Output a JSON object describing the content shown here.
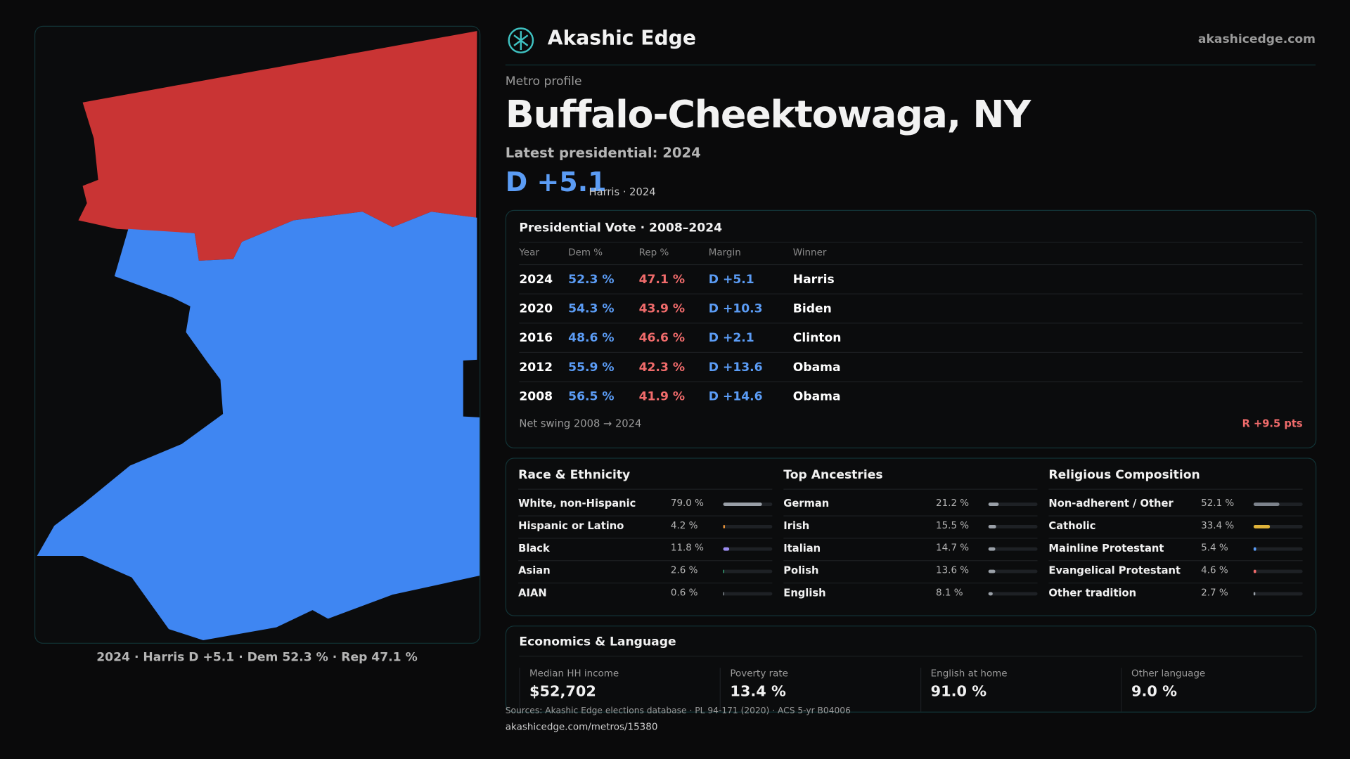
{
  "header": {
    "brand": "Akashic Edge",
    "site": "akashicedge.com"
  },
  "map": {
    "caption": "2024 · Harris D +5.1 · Dem 52.3 % · Rep 47.1 %"
  },
  "profile": {
    "kicker": "Metro profile",
    "title": "Buffalo-Cheektowaga, NY",
    "latest": "Latest presidential: 2024",
    "margin": "D +5.1",
    "margin_note": "Harris · 2024"
  },
  "vote_table": {
    "title": "Presidential Vote · 2008–2024",
    "columns": [
      "Year",
      "Dem %",
      "Rep %",
      "Margin",
      "Winner"
    ],
    "rows": [
      [
        "2024",
        "52.3 %",
        "47.1 %",
        "D +5.1",
        "Harris"
      ],
      [
        "2020",
        "54.3 %",
        "43.9 %",
        "D +10.3",
        "Biden"
      ],
      [
        "2016",
        "48.6 %",
        "46.6 %",
        "D +2.1",
        "Clinton"
      ],
      [
        "2012",
        "55.9 %",
        "42.3 %",
        "D +13.6",
        "Obama"
      ],
      [
        "2008",
        "56.5 %",
        "41.9 %",
        "D +14.6",
        "Obama"
      ]
    ],
    "swing_label": "Net swing 2008 → 2024",
    "swing": "R +9.5 pts"
  },
  "panels": [
    {
      "title": "Race & Ethnicity",
      "items": [
        {
          "label": "White, non-Hispanic",
          "value": 79.0,
          "value_label": "79.0 %",
          "color": "#9aa0a8"
        },
        {
          "label": "Hispanic or Latino",
          "value": 4.2,
          "value_label": "4.2 %",
          "color": "#e8943a"
        },
        {
          "label": "Black",
          "value": 11.8,
          "value_label": "11.8 %",
          "color": "#9b8cf0"
        },
        {
          "label": "Asian",
          "value": 2.6,
          "value_label": "2.6 %",
          "color": "#3dbf8a"
        },
        {
          "label": "AIAN",
          "value": 0.6,
          "value_label": "0.6 %",
          "color": "#9aa0a8"
        }
      ]
    },
    {
      "title": "Top Ancestries",
      "items": [
        {
          "label": "German",
          "value": 21.2,
          "value_label": "21.2 %",
          "color": "#9aa0a8"
        },
        {
          "label": "Irish",
          "value": 15.5,
          "value_label": "15.5 %",
          "color": "#9aa0a8"
        },
        {
          "label": "Italian",
          "value": 14.7,
          "value_label": "14.7 %",
          "color": "#9aa0a8"
        },
        {
          "label": "Polish",
          "value": 13.6,
          "value_label": "13.6 %",
          "color": "#9aa0a8"
        },
        {
          "label": "English",
          "value": 8.1,
          "value_label": "8.1 %",
          "color": "#9aa0a8"
        }
      ]
    },
    {
      "title": "Religious Composition",
      "items": [
        {
          "label": "Non-adherent / Other",
          "value": 52.1,
          "value_label": "52.1 %",
          "color": "#7d838c"
        },
        {
          "label": "Catholic",
          "value": 33.4,
          "value_label": "33.4 %",
          "color": "#e0b43a"
        },
        {
          "label": "Mainline Protestant",
          "value": 5.4,
          "value_label": "5.4 %",
          "color": "#5b9cf5"
        },
        {
          "label": "Evangelical Protestant",
          "value": 4.6,
          "value_label": "4.6 %",
          "color": "#f06b6b"
        },
        {
          "label": "Other tradition",
          "value": 2.7,
          "value_label": "2.7 %",
          "color": "#9aa0a8"
        }
      ]
    }
  ],
  "economics": {
    "title": "Economics & Language",
    "stats": [
      {
        "label": "Median HH income",
        "value": "$52,702"
      },
      {
        "label": "Poverty rate",
        "value": "13.4 %"
      },
      {
        "label": "English at home",
        "value": "91.0 %"
      },
      {
        "label": "Other language",
        "value": "9.0 %"
      }
    ]
  },
  "footer": {
    "sources": "Sources: Akashic Edge elections database · PL 94-171 (2020) · ACS 5-yr B04006",
    "url": "akashicedge.com/metros/15380"
  }
}
